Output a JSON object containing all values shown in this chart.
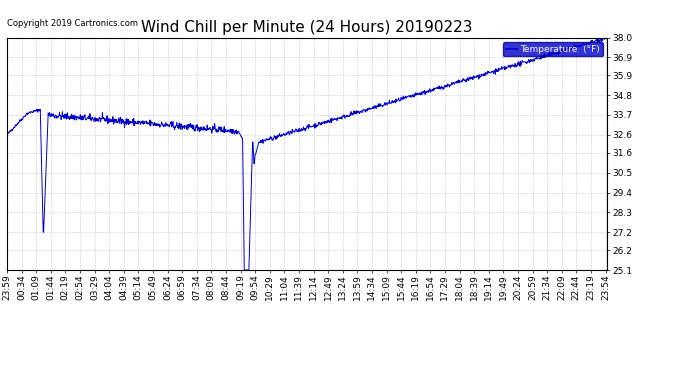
{
  "title": "Wind Chill per Minute (24 Hours) 20190223",
  "copyright": "Copyright 2019 Cartronics.com",
  "legend_label": "Temperature  (°F)",
  "ylim": [
    25.1,
    38.0
  ],
  "yticks": [
    25.1,
    26.2,
    27.2,
    28.3,
    29.4,
    30.5,
    31.6,
    32.6,
    33.7,
    34.8,
    35.9,
    36.9,
    38.0
  ],
  "line_color": "#0000cc",
  "bg_color": "#ffffff",
  "grid_color": "#bbbbbb",
  "title_color": "#000000",
  "legend_bg": "#0000cc",
  "legend_text_color": "#ffffff",
  "title_fontsize": 11,
  "axis_fontsize": 6.5,
  "tick_labels": [
    "23:59",
    "00:34",
    "01:09",
    "01:44",
    "02:19",
    "02:54",
    "03:29",
    "04:04",
    "04:39",
    "05:14",
    "05:49",
    "06:24",
    "06:59",
    "07:34",
    "08:09",
    "08:44",
    "09:19",
    "09:54",
    "10:29",
    "11:04",
    "11:39",
    "12:14",
    "12:49",
    "13:24",
    "13:59",
    "14:34",
    "15:09",
    "15:44",
    "16:19",
    "16:54",
    "17:29",
    "18:04",
    "18:39",
    "19:14",
    "19:49",
    "20:24",
    "20:59",
    "21:34",
    "22:09",
    "22:44",
    "23:19",
    "23:54"
  ]
}
